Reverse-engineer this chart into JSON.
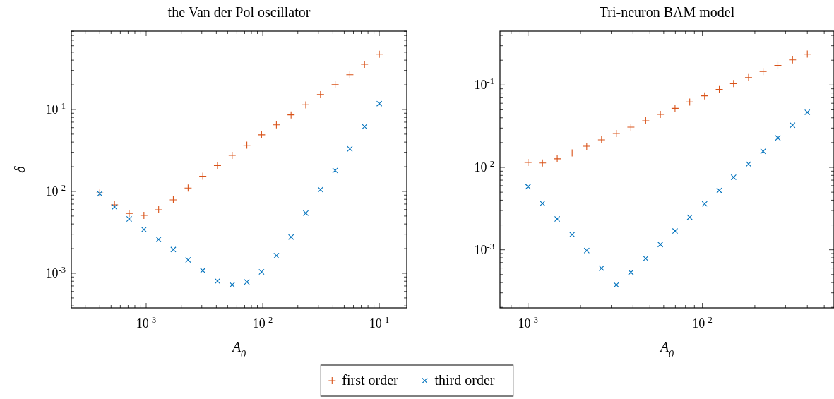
{
  "chart_data": [
    {
      "type": "scatter",
      "title": "the Van der Pol oscillator",
      "xlabel": "A$_{0}$",
      "ylabel": "δ",
      "log": "xy",
      "legend": "bottom",
      "xlim": [
        0.000228,
        0.172
      ],
      "ylim": [
        0.000378,
        0.905
      ],
      "xticks": [
        {
          "value": 0.001,
          "label": "10$^{-3}$"
        },
        {
          "value": 0.01,
          "label": "10$^{-2}$"
        },
        {
          "value": 0.1,
          "label": "10$^{-1}$"
        }
      ],
      "yticks": [
        {
          "value": 0.001,
          "label": "10$^{-3}$"
        },
        {
          "value": 0.01,
          "label": "10$^{-2}$"
        },
        {
          "value": 0.1,
          "label": "10$^{-1}$"
        }
      ],
      "x": [
        0.0004,
        0.000535,
        0.000715,
        0.000957,
        0.00128,
        0.00171,
        0.00229,
        0.00306,
        0.00409,
        0.00547,
        0.00731,
        0.00977,
        0.0131,
        0.0175,
        0.0234,
        0.0313,
        0.0418,
        0.0559,
        0.0747,
        0.1
      ],
      "series": [
        {
          "name": "first order",
          "color": "#d95319",
          "marker": "plus",
          "values": [
            0.00955,
            0.00686,
            0.00537,
            0.00509,
            0.00597,
            0.00788,
            0.011,
            0.0153,
            0.0207,
            0.0275,
            0.0366,
            0.049,
            0.065,
            0.0859,
            0.114,
            0.152,
            0.201,
            0.266,
            0.356,
            0.473
          ]
        },
        {
          "name": "third order",
          "color": "#0072bd",
          "marker": "cross",
          "values": [
            0.00937,
            0.00646,
            0.00461,
            0.00342,
            0.00259,
            0.00195,
            0.00146,
            0.00108,
            0.000804,
            0.000723,
            0.000783,
            0.00104,
            0.00164,
            0.00277,
            0.00543,
            0.0105,
            0.018,
            0.0331,
            0.0618,
            0.118
          ]
        }
      ]
    },
    {
      "type": "scatter",
      "title": "Tri-neuron BAM model",
      "xlabel": "A$_{0}$",
      "log": "xy",
      "xlim": [
        0.00069,
        0.0569
      ],
      "ylim": [
        0.000197,
        0.451
      ],
      "xticks": [
        {
          "value": 0.001,
          "label": "10$^{-3}$"
        },
        {
          "value": 0.01,
          "label": "10$^{-2}$"
        }
      ],
      "yticks": [
        {
          "value": 0.001,
          "label": "10$^{-3}$"
        },
        {
          "value": 0.01,
          "label": "10$^{-2}$"
        },
        {
          "value": 0.1,
          "label": "10$^{-1}$"
        }
      ],
      "x": [
        0.001,
        0.00121,
        0.00147,
        0.00179,
        0.00217,
        0.00264,
        0.00321,
        0.00389,
        0.00473,
        0.00574,
        0.00697,
        0.00846,
        0.0103,
        0.0125,
        0.0151,
        0.0184,
        0.0223,
        0.0271,
        0.0329,
        0.04
      ],
      "series": [
        {
          "color": "#d95319",
          "marker": "plus",
          "values": [
            0.0115,
            0.0113,
            0.0127,
            0.015,
            0.0181,
            0.0216,
            0.0258,
            0.0308,
            0.0368,
            0.044,
            0.0521,
            0.0622,
            0.0739,
            0.0883,
            0.104,
            0.123,
            0.146,
            0.173,
            0.202,
            0.237
          ]
        },
        {
          "color": "#0072bd",
          "marker": "cross",
          "values": [
            0.00583,
            0.00366,
            0.00237,
            0.00153,
            0.00098,
            0.000598,
            0.000375,
            0.000532,
            0.000783,
            0.00116,
            0.00169,
            0.00248,
            0.00361,
            0.00525,
            0.00759,
            0.011,
            0.0157,
            0.0228,
            0.0325,
            0.0467
          ]
        }
      ]
    }
  ]
}
